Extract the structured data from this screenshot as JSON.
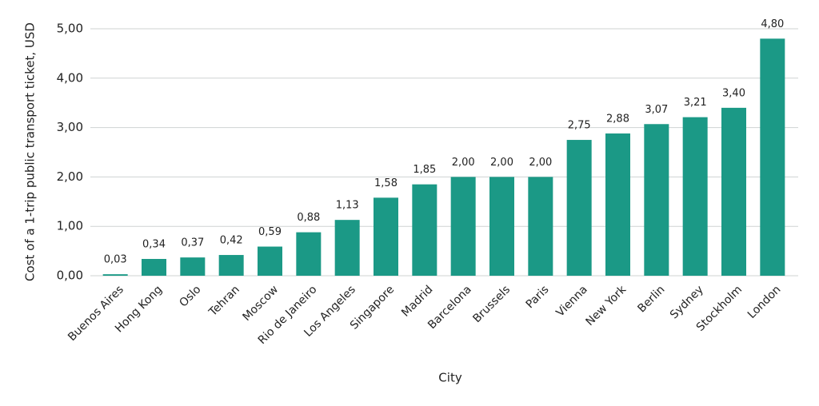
{
  "chart_data": {
    "type": "bar",
    "x_label": "City",
    "y_label": "Cost of a 1-trip public transport ticket, USD",
    "categories": [
      "Buenos Aires",
      "Hong Kong",
      "Oslo",
      "Tehran",
      "Moscow",
      "Rio de Janeiro",
      "Los Angeles",
      "Singapore",
      "Madrid",
      "Barcelona",
      "Brussels",
      "Paris",
      "Vienna",
      "New York",
      "Berlin",
      "Sydney",
      "Stockholm",
      "London"
    ],
    "values": [
      0.03,
      0.34,
      0.37,
      0.42,
      0.59,
      0.88,
      1.13,
      1.58,
      1.85,
      2.0,
      2.0,
      2.0,
      2.75,
      2.88,
      3.07,
      3.21,
      3.4,
      4.8
    ],
    "value_labels": [
      "0,03",
      "0,34",
      "0,37",
      "0,42",
      "0,59",
      "0,88",
      "1,13",
      "1,58",
      "1,85",
      "2,00",
      "2,00",
      "2,00",
      "2,75",
      "2,88",
      "3,07",
      "3,21",
      "3,40",
      "4,80"
    ],
    "color": "#1b9986",
    "ylim": [
      0,
      5
    ],
    "yticks": [
      {
        "value": 0,
        "label": "0,00"
      },
      {
        "value": 1,
        "label": "1,00"
      },
      {
        "value": 2,
        "label": "2,00"
      },
      {
        "value": 3,
        "label": "3,00"
      },
      {
        "value": 4,
        "label": "4,00"
      },
      {
        "value": 5,
        "label": "5,00"
      }
    ],
    "grid": true
  }
}
